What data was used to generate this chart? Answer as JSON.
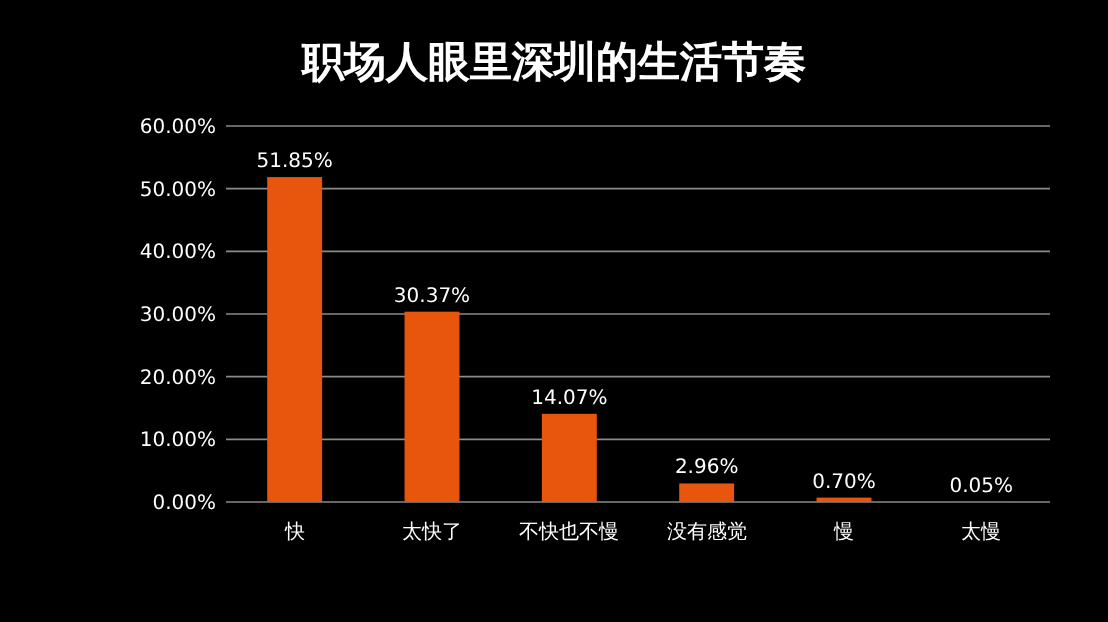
{
  "chart_data": {
    "type": "bar",
    "title": "职场人眼里深圳的生活节奏",
    "categories": [
      "快",
      "太快了",
      "不快也不慢",
      "没有感觉",
      "慢",
      "太慢"
    ],
    "values": [
      51.85,
      30.37,
      14.07,
      2.96,
      0.7,
      0.05
    ],
    "value_labels": [
      "51.85%",
      "30.37%",
      "14.07%",
      "2.96%",
      "0.70%",
      "0.05%"
    ],
    "color": "#e8560e",
    "ylim": [
      0,
      60
    ],
    "yticks": [
      {
        "value": 0,
        "label": "0.00%"
      },
      {
        "value": 10,
        "label": "10.00%"
      },
      {
        "value": 20,
        "label": "20.00%"
      },
      {
        "value": 30,
        "label": "30.00%"
      },
      {
        "value": 40,
        "label": "40.00%"
      },
      {
        "value": 50,
        "label": "50.00%"
      },
      {
        "value": 60,
        "label": "60.00%"
      }
    ],
    "grid": "y"
  }
}
